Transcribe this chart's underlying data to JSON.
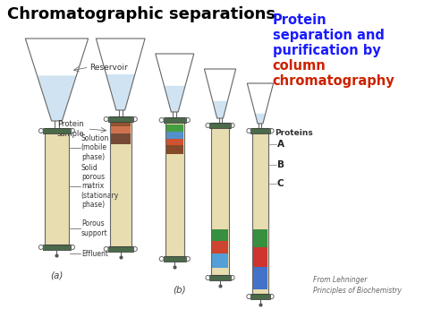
{
  "title": "Chromatographic separations",
  "title_fontsize": 13,
  "title_fontweight": "bold",
  "text_blue": "#1a1aff",
  "text_red": "#cc2200",
  "label_a": "(a)",
  "label_b": "(b)",
  "proteins_label": "Proteins",
  "protein_letters": [
    "A",
    "B",
    "C"
  ],
  "footnote": "From Lehninger\nPrinciples of Biochemistry",
  "funnel_fill": "#c8dff0",
  "column_fill": "#e8ddb0",
  "cap_color": "#4a6a4a"
}
